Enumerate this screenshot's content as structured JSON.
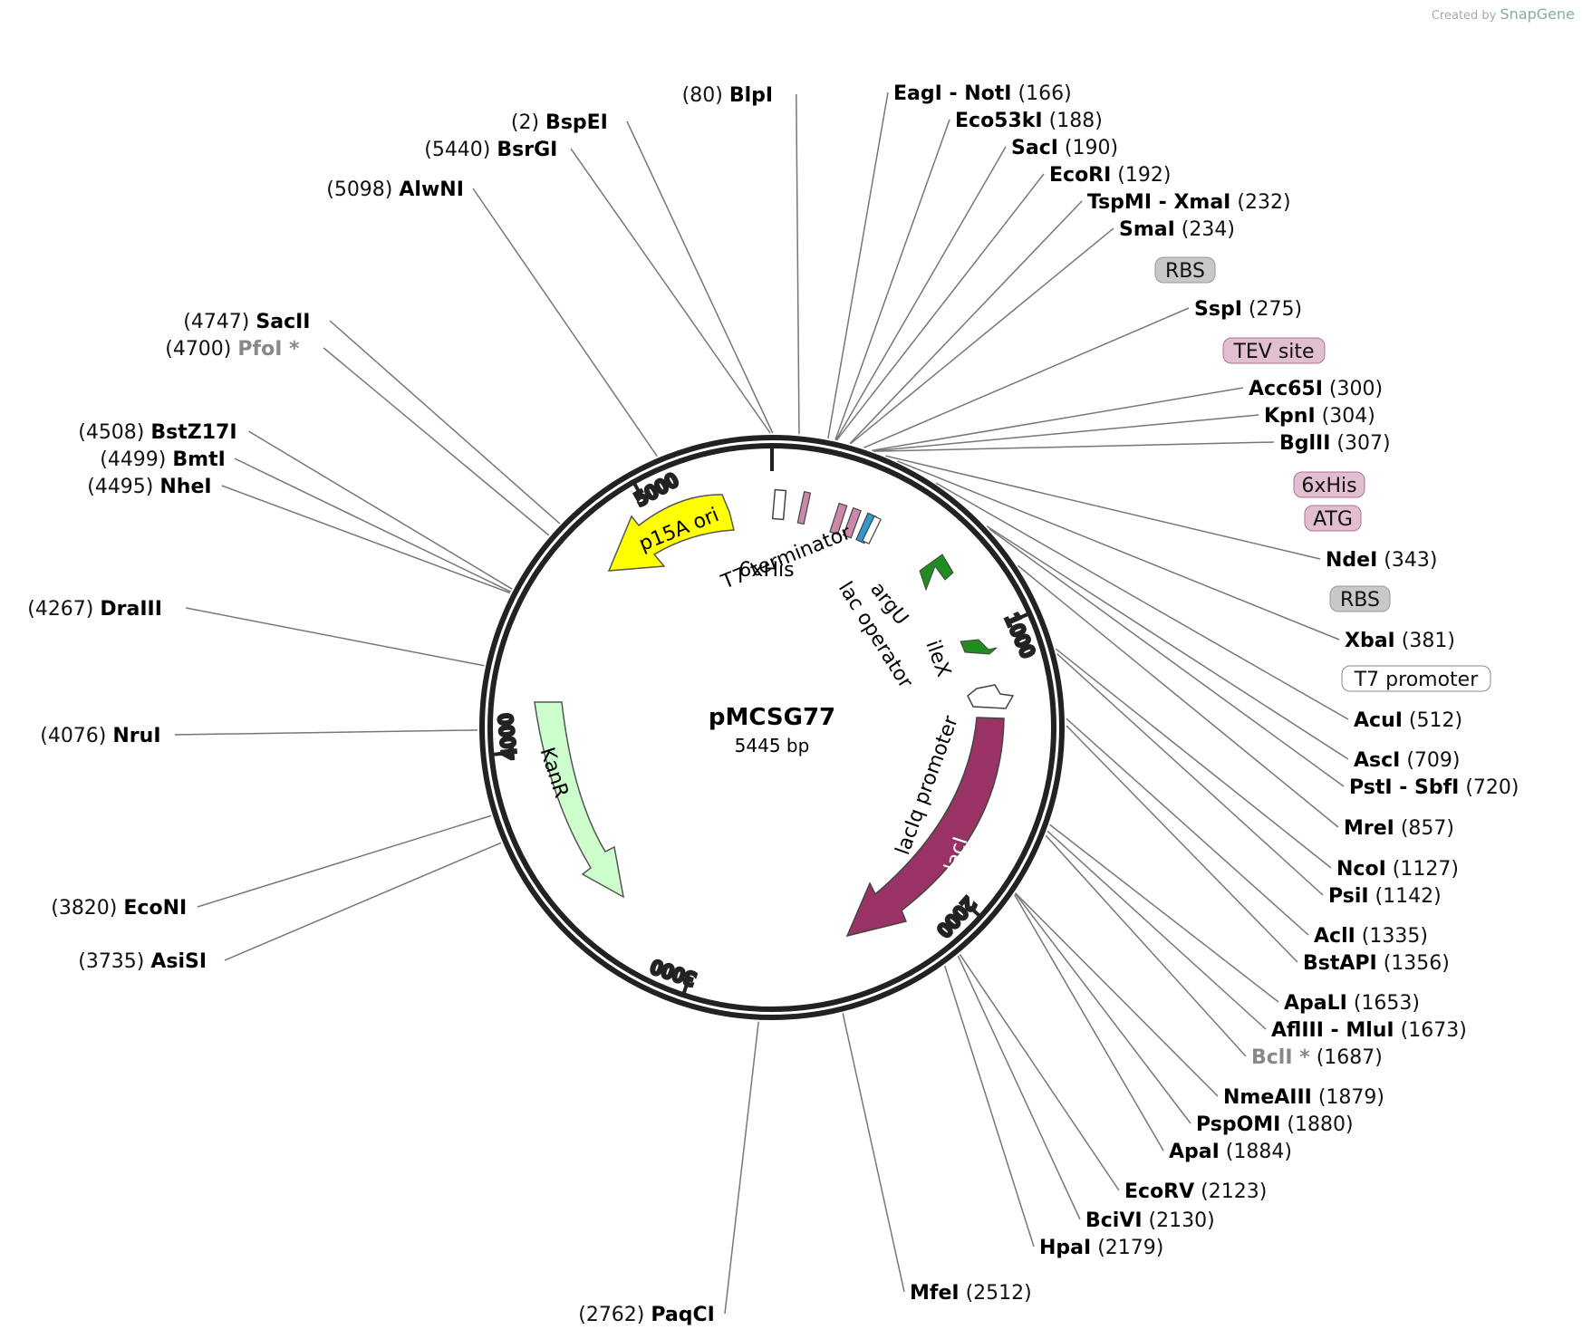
{
  "credit": {
    "prefix": "Created by",
    "brand": "SnapGene"
  },
  "plasmid": {
    "name": "pMCSG77",
    "size_label": "5445 bp"
  },
  "ticks": [
    "1000",
    "2000",
    "3000",
    "4000",
    "5000"
  ],
  "features_inner": {
    "p15A_ori": "p15A ori",
    "T7_terminator": "T7 terminator",
    "his_6x": "6xHis",
    "argU": "argU",
    "lac_operator": "lac operator",
    "ileX": "ileX",
    "lacIq_promoter": "lacIq promoter",
    "lacI": "lacI",
    "KanR": "KanR"
  },
  "colors": {
    "p15A_ori": "#ffff00",
    "lacI": "#993366",
    "KanR": "#ccffcc",
    "tRNA": "#228b22",
    "RBS_box": "#c8c8c8",
    "pink_box": "#e2bfd0"
  },
  "boxes": {
    "rbs1": "RBS",
    "tev": "TEV site",
    "his": "6xHis",
    "atg": "ATG",
    "rbs2": "RBS",
    "t7promoter": "T7 promoter"
  },
  "sites": [
    {
      "name": "BlpI",
      "pos": "(80)"
    },
    {
      "name": "BspEI",
      "pos": "(2)"
    },
    {
      "name": "BsrGI",
      "pos": "(5440)"
    },
    {
      "name": "AlwNI",
      "pos": "(5098)"
    },
    {
      "name": "SacII",
      "pos": "(4747)"
    },
    {
      "name": "PfoI *",
      "pos": "(4700)"
    },
    {
      "name": "BstZ17I",
      "pos": "(4508)"
    },
    {
      "name": "BmtI",
      "pos": "(4499)"
    },
    {
      "name": "NheI",
      "pos": "(4495)"
    },
    {
      "name": "DraIII",
      "pos": "(4267)"
    },
    {
      "name": "NruI",
      "pos": "(4076)"
    },
    {
      "name": "EcoNI",
      "pos": "(3820)"
    },
    {
      "name": "AsiSI",
      "pos": "(3735)"
    },
    {
      "name": "PaqCI",
      "pos": "(2762)"
    },
    {
      "name": "MfeI",
      "pos": "(2512)"
    },
    {
      "name": "HpaI",
      "pos": "(2179)"
    },
    {
      "name": "BciVI",
      "pos": "(2130)"
    },
    {
      "name": "EcoRV",
      "pos": "(2123)"
    },
    {
      "name": "ApaI",
      "pos": "(1884)"
    },
    {
      "name": "PspOMI",
      "pos": "(1880)"
    },
    {
      "name": "NmeAIII",
      "pos": "(1879)"
    },
    {
      "name": "BclI *",
      "pos": "(1687)"
    },
    {
      "name": "AflIII",
      "name2": "MluI",
      "pos": "(1673)"
    },
    {
      "name": "ApaLI",
      "pos": "(1653)"
    },
    {
      "name": "BstAPI",
      "pos": "(1356)"
    },
    {
      "name": "AclI",
      "pos": "(1335)"
    },
    {
      "name": "PsiI",
      "pos": "(1142)"
    },
    {
      "name": "NcoI",
      "pos": "(1127)"
    },
    {
      "name": "MreI",
      "pos": "(857)"
    },
    {
      "name": "PstI",
      "name2": "SbfI",
      "pos": "(720)"
    },
    {
      "name": "AscI",
      "pos": "(709)"
    },
    {
      "name": "AcuI",
      "pos": "(512)"
    },
    {
      "name": "XbaI",
      "pos": "(381)"
    },
    {
      "name": "NdeI",
      "pos": "(343)"
    },
    {
      "name": "BglII",
      "pos": "(307)"
    },
    {
      "name": "KpnI",
      "pos": "(304)"
    },
    {
      "name": "Acc65I",
      "pos": "(300)"
    },
    {
      "name": "SspI",
      "pos": "(275)"
    },
    {
      "name": "SmaI",
      "pos": "(234)"
    },
    {
      "name": "TspMI",
      "name2": "XmaI",
      "pos": "(232)"
    },
    {
      "name": "EcoRI",
      "pos": "(192)"
    },
    {
      "name": "SacI",
      "pos": "(190)"
    },
    {
      "name": "Eco53kI",
      "pos": "(188)"
    },
    {
      "name": "EagI",
      "name2": "NotI",
      "pos": "(166)"
    }
  ]
}
